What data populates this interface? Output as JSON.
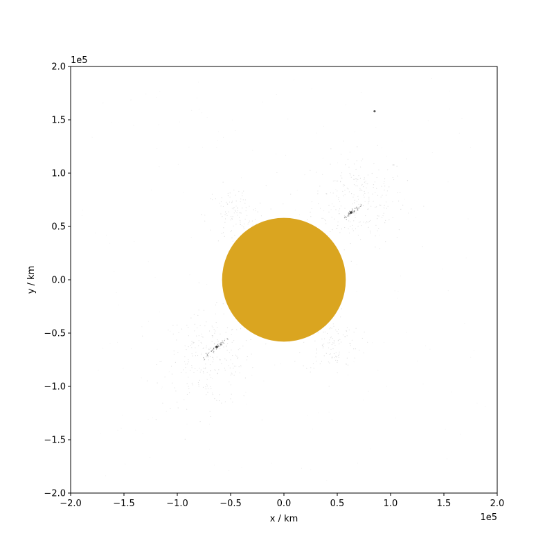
{
  "chart_data": {
    "type": "scatter",
    "title": "",
    "xlabel": "x / km",
    "ylabel": "y / km",
    "xlim": [
      -2.0,
      2.0
    ],
    "ylim": [
      -2.0,
      2.0
    ],
    "x_offset_text": "1e5",
    "y_offset_text": "1e5",
    "x_ticks": [
      -2.0,
      -1.5,
      -1.0,
      -0.5,
      0.0,
      0.5,
      1.0,
      1.5,
      2.0
    ],
    "y_ticks": [
      -2.0,
      -1.5,
      -1.0,
      -0.5,
      0.0,
      0.5,
      1.0,
      1.5,
      2.0
    ],
    "x_tick_labels": [
      "−2.0",
      "−1.5",
      "−1.0",
      "−0.5",
      "0.0",
      "0.5",
      "1.0",
      "1.5",
      "2.0"
    ],
    "y_tick_labels": [
      "−2.0",
      "−1.5",
      "−1.0",
      "−0.5",
      "0.0",
      "0.5",
      "1.0",
      "1.5",
      "2.0"
    ],
    "grid": false,
    "central_body": {
      "center": [
        0.0,
        0.0
      ],
      "radius": 0.58,
      "color": "#daa520"
    },
    "particle_clumps": [
      {
        "center": [
          0.63,
          0.63
        ],
        "color": "#000000"
      },
      {
        "center": [
          -0.63,
          -0.63
        ],
        "color": "#000000"
      },
      {
        "center": [
          0.85,
          1.58
        ],
        "color": "#555555"
      }
    ],
    "halo_lobes": [
      {
        "center": [
          0.7,
          0.75
        ]
      },
      {
        "center": [
          -0.7,
          -0.75
        ]
      },
      {
        "center": [
          -0.45,
          0.6
        ]
      },
      {
        "center": [
          0.45,
          -0.6
        ]
      }
    ]
  }
}
